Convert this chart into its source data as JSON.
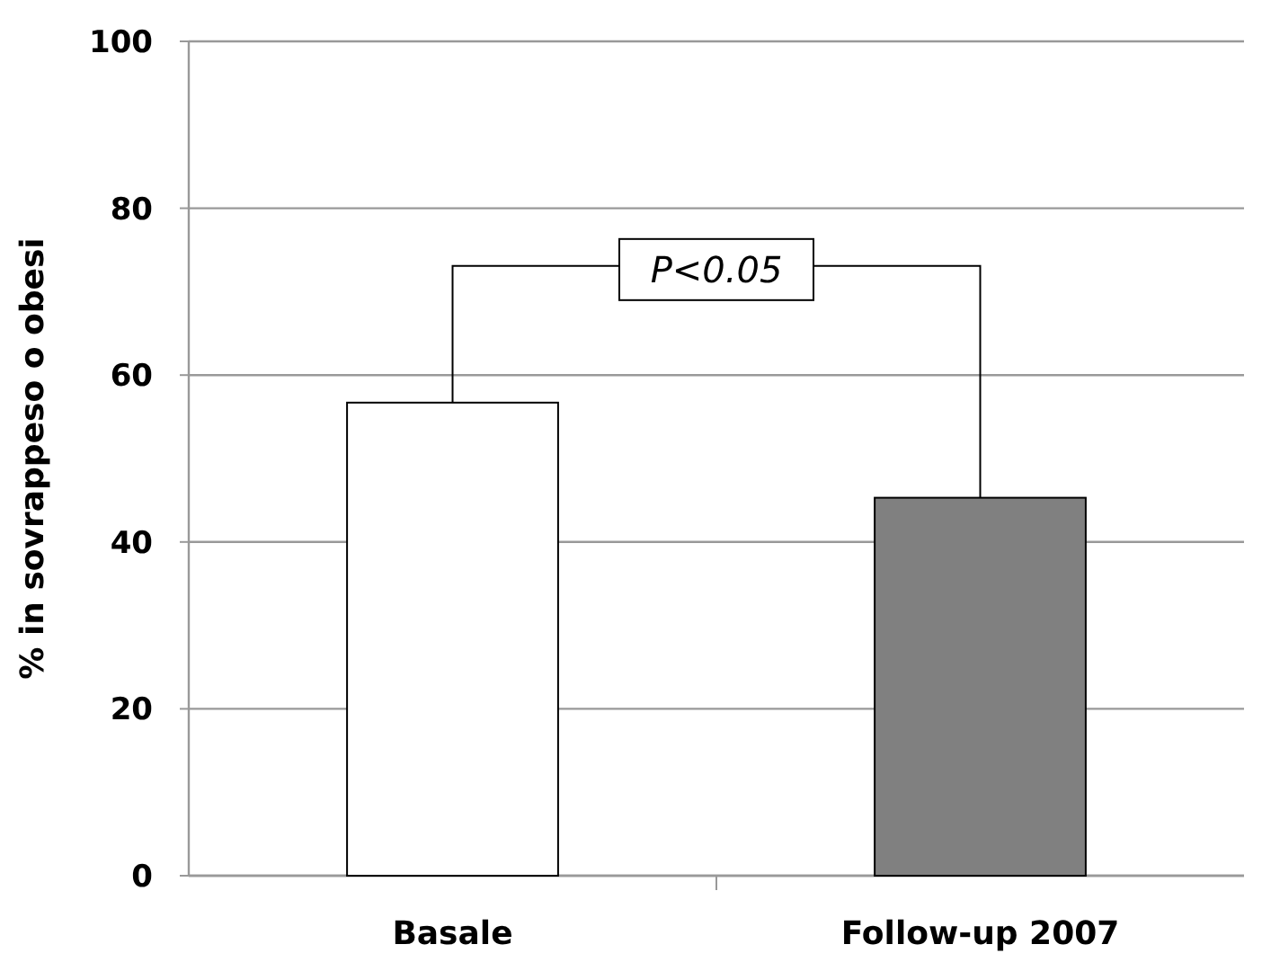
{
  "chart_data": {
    "type": "bar",
    "ylabel": "% in sovrappeso o obesi",
    "categories": [
      "Basale",
      "Follow-up 2007"
    ],
    "values": [
      56.7,
      45.3
    ],
    "colors": [
      "#ffffff",
      "#808080"
    ],
    "ylim": [
      0,
      100
    ],
    "yticks": [
      0,
      20,
      40,
      60,
      80,
      100
    ],
    "grid": "y",
    "annotations": [
      {
        "text": "P<0.05",
        "x": "Follow-up 2007",
        "y": 45.3
      }
    ]
  }
}
